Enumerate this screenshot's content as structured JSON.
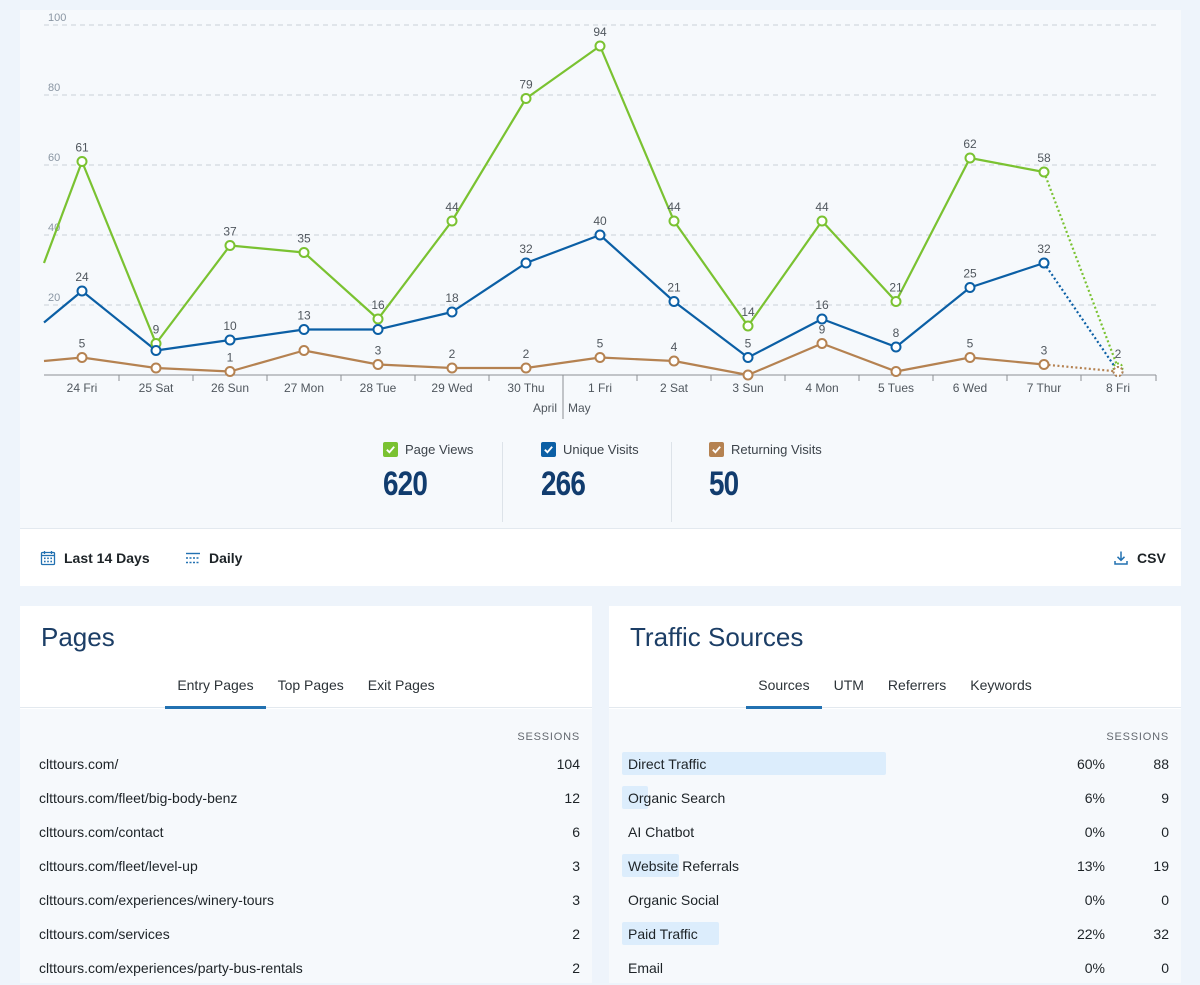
{
  "colors": {
    "page_views": "#7ac231",
    "unique_visits": "#0b5fa5",
    "returning_visits": "#b58251",
    "accent": "#2271b1"
  },
  "chart_data": {
    "type": "line",
    "categories": [
      "24 Fri",
      "25 Sat",
      "26 Sun",
      "27 Mon",
      "28 Tue",
      "29 Wed",
      "30 Thu",
      "1 Fri",
      "2 Sat",
      "3 Sun",
      "4 Mon",
      "5 Tues",
      "6 Wed",
      "7 Thur",
      "8 Fri"
    ],
    "month_labels": [
      "April",
      "May"
    ],
    "yticks": [
      "100",
      "80",
      "60",
      "40",
      "20"
    ],
    "ylim": [
      0,
      100
    ],
    "grid": true,
    "series": [
      {
        "name": "Page Views",
        "values": [
          61,
          9,
          37,
          35,
          16,
          44,
          79,
          94,
          44,
          14,
          44,
          21,
          62,
          58,
          2
        ],
        "edge_values": [
          32,
          null
        ]
      },
      {
        "name": "Unique Visits",
        "values": [
          24,
          7,
          10,
          13,
          13,
          18,
          32,
          40,
          21,
          5,
          16,
          8,
          25,
          32,
          1
        ],
        "edge_values": [
          15,
          null
        ]
      },
      {
        "name": "Returning Visits",
        "values": [
          5,
          2,
          1,
          7,
          3,
          2,
          2,
          5,
          4,
          0,
          9,
          1,
          5,
          3,
          1
        ],
        "edge_values": [
          4,
          null
        ]
      }
    ],
    "data_labels": {
      "Page Views": [
        "61",
        "9",
        "37",
        "35",
        "16",
        "44",
        "79",
        "94",
        "44",
        "14",
        "44",
        "21",
        "62",
        "58",
        "2"
      ],
      "Unique Visits": [
        "24",
        "",
        "10",
        "13",
        "",
        "18",
        "32",
        "40",
        "21",
        "5",
        "16",
        "8",
        "25",
        "32",
        ""
      ],
      "Returning Visits": [
        "5",
        "",
        "1",
        "",
        "3",
        "2",
        "2",
        "5",
        "4",
        "",
        "9",
        "",
        "5",
        "3",
        ""
      ]
    }
  },
  "totals": {
    "page_views": {
      "label": "Page Views",
      "value": "620"
    },
    "unique_visits": {
      "label": "Unique Visits",
      "value": "266"
    },
    "returning_visits": {
      "label": "Returning Visits",
      "value": "50"
    }
  },
  "controls": {
    "range": "Last 14 Days",
    "interval": "Daily",
    "export": "CSV"
  },
  "pages": {
    "title": "Pages",
    "tabs": [
      "Entry Pages",
      "Top Pages",
      "Exit Pages"
    ],
    "column": "SESSIONS",
    "rows": [
      {
        "name": "clttours.com/",
        "sessions": "104"
      },
      {
        "name": "clttours.com/fleet/big-body-benz",
        "sessions": "12"
      },
      {
        "name": "clttours.com/contact",
        "sessions": "6"
      },
      {
        "name": "clttours.com/fleet/level-up",
        "sessions": "3"
      },
      {
        "name": "clttours.com/experiences/winery-tours",
        "sessions": "3"
      },
      {
        "name": "clttours.com/services",
        "sessions": "2"
      },
      {
        "name": "clttours.com/experiences/party-bus-rentals",
        "sessions": "2"
      }
    ]
  },
  "traffic": {
    "title": "Traffic Sources",
    "tabs": [
      "Sources",
      "UTM",
      "Referrers",
      "Keywords"
    ],
    "column": "SESSIONS",
    "rows": [
      {
        "name": "Direct Traffic",
        "pct": "60%",
        "sessions": "88",
        "share": 0.6
      },
      {
        "name": "Organic Search",
        "pct": "6%",
        "sessions": "9",
        "share": 0.06
      },
      {
        "name": "AI Chatbot",
        "pct": "0%",
        "sessions": "0",
        "share": 0
      },
      {
        "name": "Website Referrals",
        "pct": "13%",
        "sessions": "19",
        "share": 0.13
      },
      {
        "name": "Organic Social",
        "pct": "0%",
        "sessions": "0",
        "share": 0
      },
      {
        "name": "Paid Traffic",
        "pct": "22%",
        "sessions": "32",
        "share": 0.22
      },
      {
        "name": "Email",
        "pct": "0%",
        "sessions": "0",
        "share": 0
      }
    ]
  }
}
